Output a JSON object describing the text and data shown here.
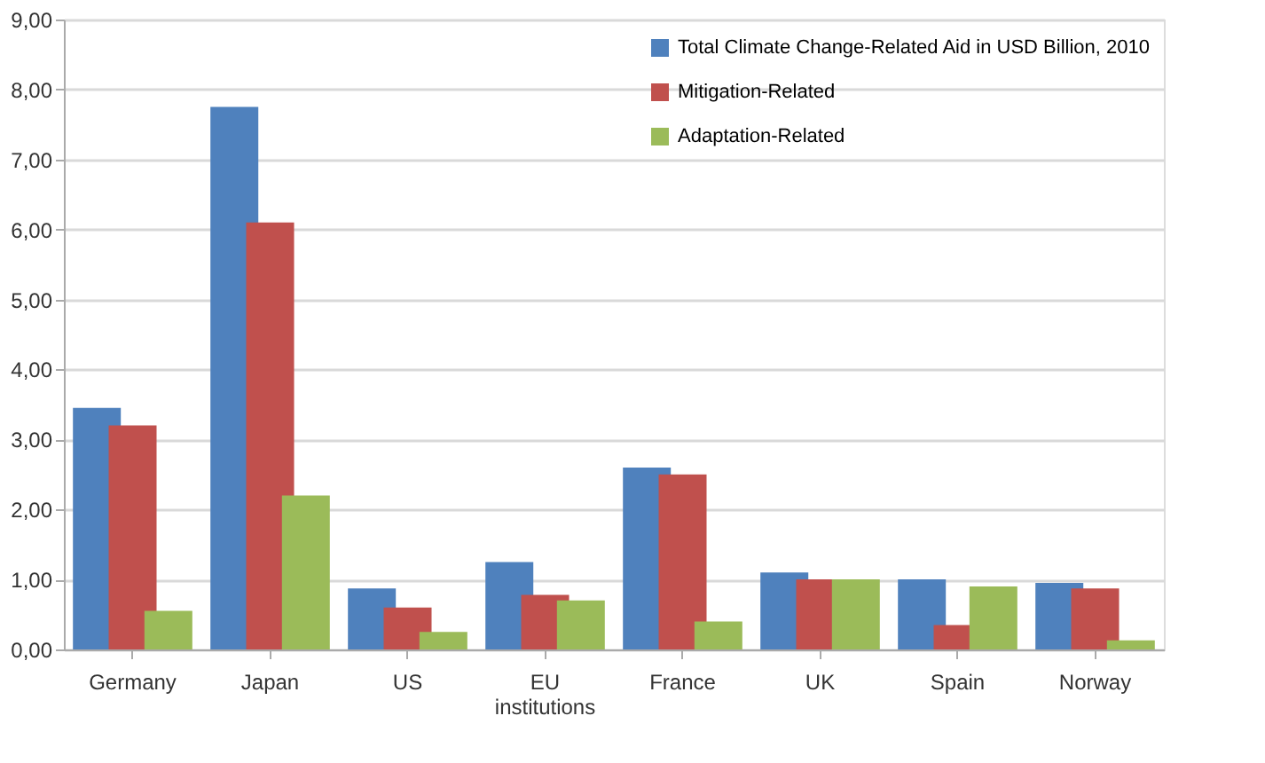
{
  "chart_data": {
    "type": "bar",
    "categories": [
      "Germany",
      "Japan",
      "US",
      "EU institutions",
      "France",
      "UK",
      "Spain",
      "Norway"
    ],
    "series": [
      {
        "name": "Total Climate Change-Related Aid in USD Billion, 2010",
        "color": "#4f81bd",
        "values": [
          3.45,
          7.75,
          0.87,
          1.25,
          2.6,
          1.1,
          1.0,
          0.95
        ]
      },
      {
        "name": "Mitigation-Related",
        "color": "#c0504d",
        "values": [
          3.2,
          6.1,
          0.6,
          0.78,
          2.5,
          1.0,
          0.35,
          0.87
        ]
      },
      {
        "name": "Adaptation-Related",
        "color": "#9bbb59",
        "values": [
          0.55,
          2.2,
          0.25,
          0.7,
          0.4,
          1.0,
          0.9,
          0.13
        ]
      }
    ],
    "ylim": [
      0,
      9
    ],
    "yticks": [
      {
        "value": 0,
        "label": "0,00"
      },
      {
        "value": 1,
        "label": "1,00"
      },
      {
        "value": 2,
        "label": "2,00"
      },
      {
        "value": 3,
        "label": "3,00"
      },
      {
        "value": 4,
        "label": "4,00"
      },
      {
        "value": 5,
        "label": "5,00"
      },
      {
        "value": 6,
        "label": "6,00"
      },
      {
        "value": 7,
        "label": "7,00"
      },
      {
        "value": 8,
        "label": "8,00"
      },
      {
        "value": 9,
        "label": "9,00"
      }
    ],
    "grid": "y",
    "legend": "top right"
  }
}
